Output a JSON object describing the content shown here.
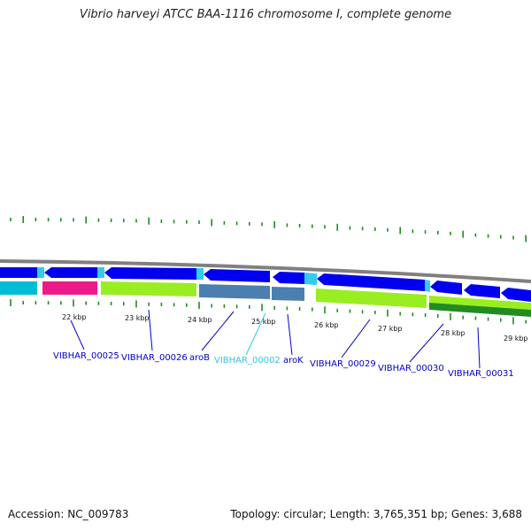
{
  "title": "Vibrio harveyi ATCC BAA-1116 chromosome I, complete genome",
  "footer": {
    "accession": "Accession: NC_009783",
    "topology": "Topology: circular; Length: 3,765,351 bp; Genes: 3,688"
  },
  "scale_labels": [
    "22 kbp",
    "23 kbp",
    "24 kbp",
    "25 kbp",
    "26 kbp",
    "27 kbp",
    "28 kbp",
    "29 kbp"
  ],
  "gene_labels": [
    {
      "text": "VIBHAR_00025",
      "color": "#0000cc"
    },
    {
      "text": "VIBHAR_00026",
      "color": "#0000cc"
    },
    {
      "text": "aroB",
      "color": "#0000cc"
    },
    {
      "text": "VIBHAR_00002",
      "color": "#33c6e6"
    },
    {
      "text": "aroK",
      "color": "#0000cc"
    },
    {
      "text": "VIBHAR_00029",
      "color": "#0000cc"
    },
    {
      "text": "VIBHAR_00030",
      "color": "#0000cc"
    },
    {
      "text": "VIBHAR_00031",
      "color": "#0000cc"
    }
  ],
  "colors": {
    "backbone": "#808080",
    "cds_forward": "#0000ee",
    "cds_reverse": "#0000ee",
    "gap": "#33ccee",
    "cyan_feature": "#00bcd4",
    "magenta_feature": "#ee1a8a",
    "lime_feature": "#99ee22",
    "steel_feature": "#4a7fb0",
    "dark_green_feature": "#228b22",
    "ticks": "#228b22"
  }
}
